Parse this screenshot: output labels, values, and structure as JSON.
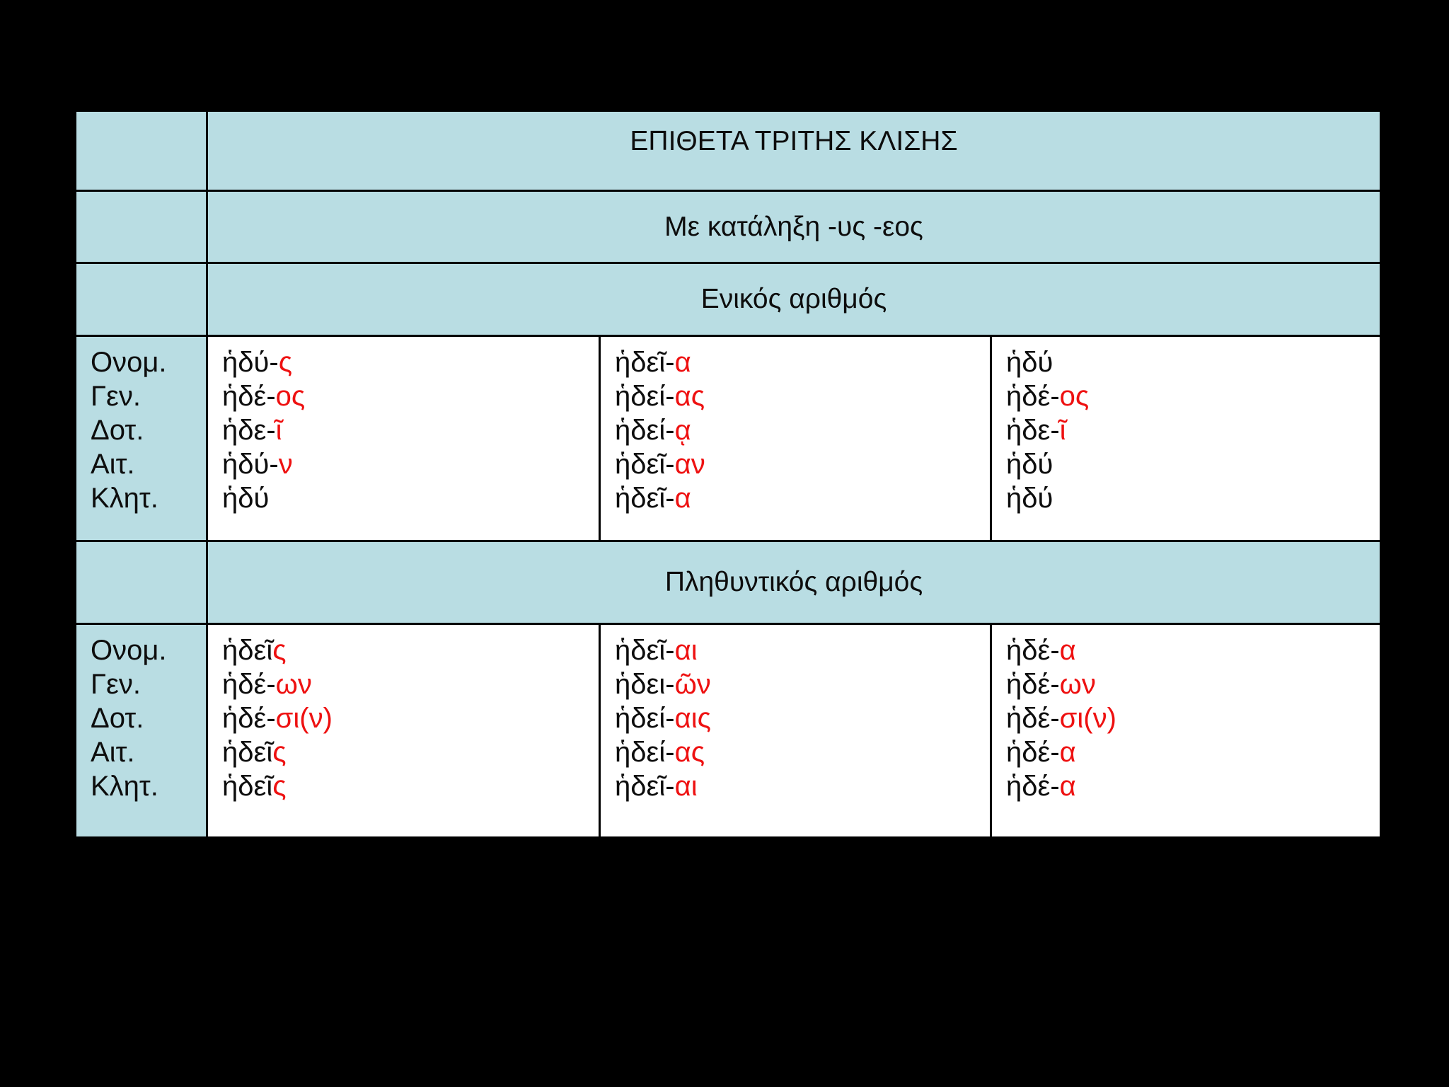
{
  "table": {
    "title": "ΕΠΙΘΕΤΑ ΤΡΙΤΗΣ ΚΛΙΣΗΣ",
    "subtitle": "Με κατάληξη -υς -εος",
    "colors": {
      "background": "#000000",
      "header_fill": "#b9dde3",
      "cell_fill": "#ffffff",
      "grid_line": "#000000",
      "stem_text": "#0d0d0d",
      "ending_text": "#ee1111"
    },
    "cases": [
      "Ονομ.",
      "Γεν.",
      "Δοτ.",
      "Αιτ.",
      "Κλητ."
    ],
    "sections": [
      {
        "heading": "Ενικός αριθμός",
        "columns": [
          [
            {
              "stem": "ἡδύ-",
              "ending": "ς"
            },
            {
              "stem": "ἡδέ-",
              "ending": "ος"
            },
            {
              "stem": "ἡδε-",
              "ending": "ῖ"
            },
            {
              "stem": "ἡδύ-",
              "ending": "ν"
            },
            {
              "stem": "ἡδύ",
              "ending": ""
            }
          ],
          [
            {
              "stem": "ἡδεῖ-",
              "ending": "α"
            },
            {
              "stem": "ἡδεί-",
              "ending": "ας"
            },
            {
              "stem": "ἡδεί-",
              "ending": "ᾳ"
            },
            {
              "stem": "ἡδεῖ-",
              "ending": "αν"
            },
            {
              "stem": "ἡδεῖ-",
              "ending": "α"
            }
          ],
          [
            {
              "stem": "ἡδύ",
              "ending": ""
            },
            {
              "stem": "ἡδέ-",
              "ending": "ος"
            },
            {
              "stem": "ἡδε-",
              "ending": "ῖ"
            },
            {
              "stem": "ἡδύ",
              "ending": ""
            },
            {
              "stem": "ἡδύ",
              "ending": ""
            }
          ]
        ]
      },
      {
        "heading": "Πληθυντικός αριθμός",
        "columns": [
          [
            {
              "stem": "ἡδεῖ",
              "ending": "ς"
            },
            {
              "stem": "ἡδέ-",
              "ending": "ων"
            },
            {
              "stem": "ἡδέ-",
              "ending": "σι(ν)"
            },
            {
              "stem": "ἡδεῖ",
              "ending": "ς"
            },
            {
              "stem": "ἡδεῖ",
              "ending": "ς"
            }
          ],
          [
            {
              "stem": "ἡδεῖ-",
              "ending": "αι"
            },
            {
              "stem": "ἡδει-",
              "ending": "ῶν"
            },
            {
              "stem": "ἡδεί-",
              "ending": "αις"
            },
            {
              "stem": "ἡδεί-",
              "ending": "ας"
            },
            {
              "stem": "ἡδεῖ-",
              "ending": "αι"
            }
          ],
          [
            {
              "stem": "ἡδέ-",
              "ending": "α"
            },
            {
              "stem": "ἡδέ-",
              "ending": "ων"
            },
            {
              "stem": "ἡδέ-",
              "ending": "σι(ν)"
            },
            {
              "stem": "ἡδέ-",
              "ending": "α"
            },
            {
              "stem": "ἡδέ-",
              "ending": "α"
            }
          ]
        ]
      }
    ]
  }
}
